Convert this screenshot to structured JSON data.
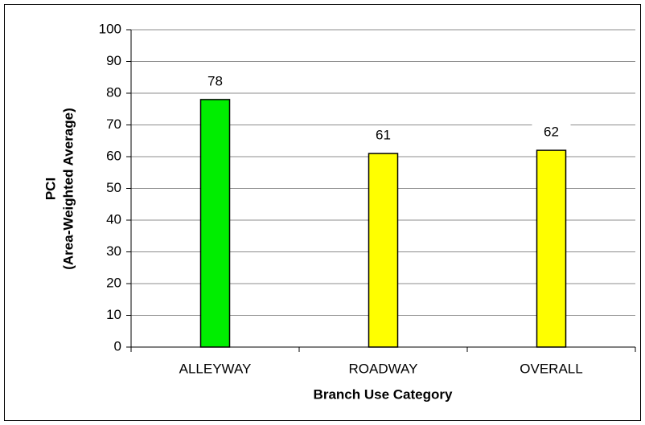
{
  "chart_data": {
    "type": "bar",
    "categories": [
      "ALLEYWAY",
      "ROADWAY",
      "OVERALL"
    ],
    "values": [
      78,
      61,
      62
    ],
    "colors": [
      "#00ee00",
      "#ffff00",
      "#ffff00"
    ],
    "xlabel": "Branch Use Category",
    "ylabel": [
      "PCI",
      "(Area-Weighted Average)"
    ],
    "ylim": [
      0,
      100
    ],
    "yticks": [
      0,
      10,
      20,
      30,
      40,
      50,
      60,
      70,
      80,
      90,
      100
    ],
    "grid": true
  }
}
